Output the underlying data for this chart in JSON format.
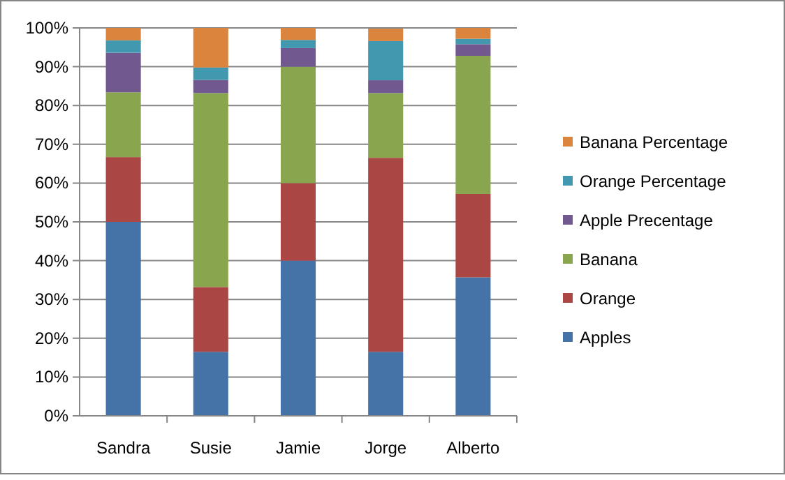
{
  "chart_data": {
    "type": "bar",
    "stacked": true,
    "categories": [
      "Sandra",
      "Susie",
      "Jamie",
      "Jorge",
      "Alberto"
    ],
    "series": [
      {
        "name": "Apples",
        "color": "#4572a7",
        "values": [
          50,
          16.5,
          40,
          16.5,
          35.7
        ]
      },
      {
        "name": "Orange",
        "color": "#aa4643",
        "values": [
          16.7,
          16.7,
          20,
          50,
          21.5
        ]
      },
      {
        "name": "Banana",
        "color": "#89a54e",
        "values": [
          16.7,
          50,
          30,
          16.7,
          35.6
        ]
      },
      {
        "name": "Apple Precentage",
        "color": "#71588f",
        "values": [
          10.2,
          3.4,
          4.8,
          3.3,
          3
        ]
      },
      {
        "name": "Orange Percentage",
        "color": "#4198af",
        "values": [
          3.2,
          3.2,
          2.1,
          10.1,
          1.4
        ]
      },
      {
        "name": "Banana Percentage",
        "color": "#db843d",
        "values": [
          3.2,
          10.2,
          3.1,
          3.2,
          2.8
        ]
      }
    ],
    "ylim": [
      0,
      100
    ],
    "yticks": [
      {
        "value": 0,
        "label": "0%"
      },
      {
        "value": 10,
        "label": "10%"
      },
      {
        "value": 20,
        "label": "20%"
      },
      {
        "value": 30,
        "label": "30%"
      },
      {
        "value": 40,
        "label": "40%"
      },
      {
        "value": 50,
        "label": "50%"
      },
      {
        "value": 60,
        "label": "60%"
      },
      {
        "value": 70,
        "label": "70%"
      },
      {
        "value": 80,
        "label": "80%"
      },
      {
        "value": 90,
        "label": "90%"
      },
      {
        "value": 100,
        "label": "100%"
      }
    ],
    "grid": "y",
    "legend": "right"
  }
}
